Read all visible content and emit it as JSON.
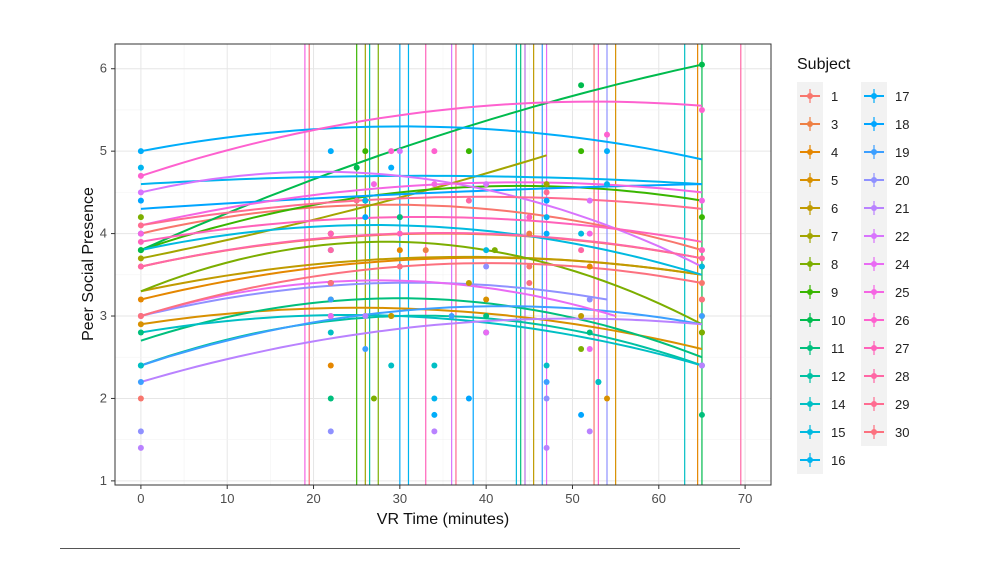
{
  "chart_data": {
    "type": "line",
    "xlabel": "VR Time (minutes)",
    "ylabel": "Peer Social Presence",
    "xlim": [
      -3,
      73
    ],
    "ylim": [
      0.95,
      6.3
    ],
    "x_ticks": [
      0,
      10,
      20,
      30,
      40,
      50,
      60,
      70
    ],
    "y_ticks": [
      1,
      2,
      3,
      4,
      5,
      6
    ],
    "grid": true,
    "legend_title": "Subject",
    "legend_placement": "right",
    "legend_columns": [
      [
        "1",
        "3",
        "4",
        "5",
        "6",
        "7",
        "8",
        "9",
        "10",
        "11",
        "12",
        "14",
        "15",
        "16"
      ],
      [
        "17",
        "18",
        "19",
        "20",
        "21",
        "22",
        "24",
        "25",
        "26",
        "27",
        "28",
        "29",
        "30"
      ]
    ],
    "series": [
      {
        "name": "1",
        "color": "#F8766D",
        "curve": [
          [
            0,
            4.0
          ],
          [
            30,
            4.35
          ],
          [
            65,
            3.8
          ]
        ],
        "vline": 52.5,
        "points": [
          [
            0,
            2.0
          ],
          [
            22,
            3.4
          ],
          [
            30,
            4.2
          ],
          [
            45,
            3.6
          ],
          [
            65,
            3.4
          ]
        ]
      },
      {
        "name": "3",
        "color": "#EE8044",
        "curve": [
          [
            0,
            3.6
          ],
          [
            35,
            4.0
          ],
          [
            65,
            3.7
          ]
        ],
        "vline": 44.5,
        "points": [
          [
            0,
            3.6
          ],
          [
            22,
            4.0
          ],
          [
            33,
            3.8
          ],
          [
            45,
            4.0
          ],
          [
            65,
            3.6
          ]
        ]
      },
      {
        "name": "4",
        "color": "#E58700",
        "curve": [
          [
            0,
            3.2
          ],
          [
            35,
            3.7
          ],
          [
            65,
            3.5
          ]
        ],
        "vline": 64.5,
        "points": [
          [
            0,
            3.2
          ],
          [
            22,
            2.4
          ],
          [
            30,
            3.8
          ],
          [
            52,
            3.6
          ],
          [
            65,
            3.2
          ]
        ]
      },
      {
        "name": "5",
        "color": "#D89000",
        "curve": [
          [
            0,
            2.9
          ],
          [
            25,
            3.1
          ],
          [
            65,
            2.6
          ]
        ],
        "vline": 55.0,
        "points": [
          [
            0,
            2.9
          ],
          [
            22,
            3.0
          ],
          [
            29,
            3.0
          ],
          [
            40,
            3.2
          ],
          [
            54,
            2.0
          ],
          [
            65,
            3.0
          ]
        ]
      },
      {
        "name": "6",
        "color": "#C09B00",
        "curve": [
          [
            0,
            3.3
          ],
          [
            30,
            3.7
          ],
          [
            65,
            3.5
          ]
        ],
        "vline": 45.5,
        "points": [
          [
            0,
            3.0
          ],
          [
            22,
            3.2
          ],
          [
            29,
            3.0
          ],
          [
            38,
            3.4
          ],
          [
            51,
            3.0
          ],
          [
            65,
            2.8
          ]
        ]
      },
      {
        "name": "7",
        "color": "#A3A500",
        "curve": [
          [
            0,
            3.7
          ],
          [
            25,
            4.3
          ],
          [
            47,
            4.95
          ]
        ],
        "vline": 26.0,
        "points": [
          [
            0,
            3.7
          ],
          [
            22,
            4.0
          ],
          [
            26,
            4.4
          ],
          [
            47,
            4.6
          ]
        ]
      },
      {
        "name": "8",
        "color": "#7CAE00",
        "curve": [
          [
            0,
            3.3
          ],
          [
            40,
            3.8
          ],
          [
            65,
            2.9
          ]
        ],
        "vline": 27.5,
        "points": [
          [
            0,
            4.2
          ],
          [
            22,
            3.4
          ],
          [
            27,
            2.0
          ],
          [
            41,
            3.8
          ],
          [
            51,
            2.6
          ],
          [
            65,
            2.8
          ]
        ]
      },
      {
        "name": "9",
        "color": "#39B600",
        "curve": [
          [
            0,
            3.8
          ],
          [
            30,
            4.5
          ],
          [
            65,
            4.4
          ]
        ],
        "vline": 25.0,
        "points": [
          [
            0,
            3.8
          ],
          [
            26,
            5.0
          ],
          [
            38,
            5.0
          ],
          [
            51,
            5.0
          ],
          [
            65,
            4.2
          ]
        ]
      },
      {
        "name": "10",
        "color": "#00BB4E",
        "curve": [
          [
            0,
            3.8
          ],
          [
            25,
            4.85
          ],
          [
            65,
            6.05
          ]
        ],
        "vline": 65.0,
        "points": [
          [
            0,
            3.8
          ],
          [
            25,
            4.8
          ],
          [
            51,
            5.8
          ],
          [
            65,
            6.05
          ]
        ]
      },
      {
        "name": "11",
        "color": "#00BF7D",
        "curve": [
          [
            0,
            2.7
          ],
          [
            35,
            3.2
          ],
          [
            65,
            2.5
          ]
        ],
        "vline": 44.0,
        "points": [
          [
            0,
            2.8
          ],
          [
            22,
            2.0
          ],
          [
            30,
            4.2
          ],
          [
            40,
            3.0
          ],
          [
            52,
            2.8
          ],
          [
            65,
            1.8
          ]
        ]
      },
      {
        "name": "12",
        "color": "#00C1A3",
        "curve": [
          [
            0,
            2.4
          ],
          [
            30,
            3.0
          ],
          [
            65,
            2.4
          ]
        ],
        "vline": 26.5,
        "points": [
          [
            0,
            2.4
          ],
          [
            26,
            3.0
          ],
          [
            40,
            2.8
          ],
          [
            53,
            2.2
          ],
          [
            65,
            2.4
          ]
        ]
      },
      {
        "name": "14",
        "color": "#00BFC4",
        "curve": [
          [
            0,
            2.8
          ],
          [
            30,
            3.0
          ],
          [
            65,
            2.4
          ]
        ],
        "vline": 63.0,
        "points": [
          [
            0,
            2.4
          ],
          [
            22,
            2.8
          ],
          [
            29,
            2.4
          ],
          [
            34,
            2.4
          ],
          [
            47,
            2.4
          ],
          [
            53,
            2.2
          ]
        ]
      },
      {
        "name": "15",
        "color": "#00BAE0",
        "curve": [
          [
            0,
            3.8
          ],
          [
            30,
            4.1
          ],
          [
            65,
            3.5
          ]
        ],
        "vline": 43.5,
        "points": [
          [
            0,
            4.0
          ],
          [
            22,
            3.8
          ],
          [
            40,
            3.8
          ],
          [
            51,
            4.0
          ],
          [
            65,
            3.6
          ]
        ]
      },
      {
        "name": "16",
        "color": "#00B4EF",
        "curve": [
          [
            0,
            4.6
          ],
          [
            30,
            4.7
          ],
          [
            65,
            4.6
          ]
        ],
        "vline": 31.0,
        "points": [
          [
            0,
            4.8
          ],
          [
            26,
            4.4
          ],
          [
            34,
            2.0
          ],
          [
            47,
            4.2
          ],
          [
            54,
            4.6
          ]
        ]
      },
      {
        "name": "17",
        "color": "#00ADFA",
        "curve": [
          [
            0,
            5.0
          ],
          [
            30,
            5.3
          ],
          [
            65,
            4.9
          ]
        ],
        "vline": 30.0,
        "points": [
          [
            0,
            5.0
          ],
          [
            22,
            5.0
          ],
          [
            29,
            4.8
          ],
          [
            34,
            1.8
          ],
          [
            47,
            4.0
          ],
          [
            54,
            5.0
          ]
        ]
      },
      {
        "name": "18",
        "color": "#00A5FF",
        "curve": [
          [
            0,
            4.3
          ],
          [
            35,
            4.5
          ],
          [
            65,
            4.6
          ]
        ],
        "vline": 38.5,
        "points": [
          [
            0,
            4.4
          ],
          [
            26,
            4.2
          ],
          [
            38,
            2.0
          ],
          [
            47,
            4.4
          ],
          [
            51,
            1.8
          ]
        ]
      },
      {
        "name": "19",
        "color": "#3C9FFF",
        "curve": [
          [
            0,
            2.4
          ],
          [
            35,
            3.1
          ],
          [
            65,
            2.9
          ]
        ],
        "vline": 46.5,
        "points": [
          [
            0,
            2.2
          ],
          [
            22,
            3.2
          ],
          [
            26,
            2.6
          ],
          [
            36,
            3.0
          ],
          [
            47,
            2.2
          ],
          [
            65,
            3.0
          ]
        ]
      },
      {
        "name": "20",
        "color": "#8F91FF",
        "curve": [
          [
            0,
            3.0
          ],
          [
            35,
            3.4
          ],
          [
            54,
            3.2
          ]
        ],
        "vline": 54.0,
        "points": [
          [
            0,
            1.6
          ],
          [
            22,
            1.6
          ],
          [
            40,
            3.6
          ],
          [
            47,
            2.0
          ],
          [
            52,
            3.2
          ]
        ]
      },
      {
        "name": "21",
        "color": "#B982FF",
        "curve": [
          [
            0,
            2.2
          ],
          [
            35,
            2.9
          ],
          [
            65,
            2.9
          ]
        ],
        "vline": 44.5,
        "points": [
          [
            0,
            1.4
          ],
          [
            26,
            3.0
          ],
          [
            34,
            1.6
          ],
          [
            47,
            1.4
          ],
          [
            52,
            1.6
          ],
          [
            65,
            2.4
          ]
        ]
      },
      {
        "name": "22",
        "color": "#D874FD",
        "curve": [
          [
            0,
            4.5
          ],
          [
            30,
            4.7
          ],
          [
            65,
            3.6
          ]
        ],
        "vline": 36.0,
        "points": [
          [
            0,
            4.5
          ],
          [
            30,
            5.0
          ],
          [
            40,
            4.6
          ],
          [
            52,
            4.4
          ],
          [
            65,
            3.8
          ]
        ]
      },
      {
        "name": "24",
        "color": "#E96BF4",
        "curve": [
          [
            0,
            3.0
          ],
          [
            35,
            3.4
          ],
          [
            55,
            3.0
          ]
        ],
        "vline": 47.0,
        "points": [
          [
            0,
            3.0
          ],
          [
            22,
            3.0
          ],
          [
            40,
            2.8
          ],
          [
            52,
            2.6
          ]
        ]
      },
      {
        "name": "25",
        "color": "#F565E3",
        "curve": [
          [
            0,
            4.1
          ],
          [
            35,
            4.6
          ],
          [
            65,
            4.5
          ]
        ],
        "vline": 19.0,
        "points": [
          [
            0,
            4.0
          ],
          [
            27,
            4.6
          ],
          [
            34,
            4.6
          ],
          [
            52,
            4.0
          ],
          [
            65,
            4.4
          ]
        ]
      },
      {
        "name": "26",
        "color": "#FE61CF",
        "curve": [
          [
            0,
            4.7
          ],
          [
            40,
            5.55
          ],
          [
            65,
            5.55
          ]
        ],
        "vline": 53.0,
        "points": [
          [
            0,
            4.7
          ],
          [
            29,
            5.0
          ],
          [
            34,
            5.0
          ],
          [
            54,
            5.2
          ],
          [
            65,
            5.5
          ]
        ]
      },
      {
        "name": "27",
        "color": "#FF62BA",
        "curve": [
          [
            0,
            3.9
          ],
          [
            30,
            4.2
          ],
          [
            65,
            3.9
          ]
        ],
        "vline": 33.0,
        "points": [
          [
            0,
            3.9
          ],
          [
            22,
            4.0
          ],
          [
            30,
            4.0
          ],
          [
            45,
            4.2
          ],
          [
            65,
            3.8
          ]
        ]
      },
      {
        "name": "28",
        "color": "#FF67A5",
        "curve": [
          [
            0,
            3.6
          ],
          [
            30,
            4.0
          ],
          [
            65,
            3.7
          ]
        ],
        "vline": 69.5,
        "points": [
          [
            0,
            3.6
          ],
          [
            22,
            3.8
          ],
          [
            38,
            4.4
          ],
          [
            51,
            3.8
          ],
          [
            65,
            3.7
          ]
        ]
      },
      {
        "name": "29",
        "color": "#FF6C91",
        "curve": [
          [
            0,
            4.1
          ],
          [
            25,
            4.4
          ],
          [
            65,
            4.3
          ]
        ],
        "vline": 36.5,
        "points": [
          [
            0,
            4.1
          ],
          [
            25,
            4.4
          ],
          [
            47,
            4.5
          ]
        ]
      },
      {
        "name": "30",
        "color": "#FC717F",
        "curve": [
          [
            0,
            3.0
          ],
          [
            30,
            3.6
          ],
          [
            65,
            3.4
          ]
        ],
        "vline": 19.5,
        "points": [
          [
            0,
            3.0
          ],
          [
            22,
            3.4
          ],
          [
            30,
            3.6
          ],
          [
            45,
            3.4
          ],
          [
            65,
            3.2
          ]
        ]
      }
    ]
  }
}
